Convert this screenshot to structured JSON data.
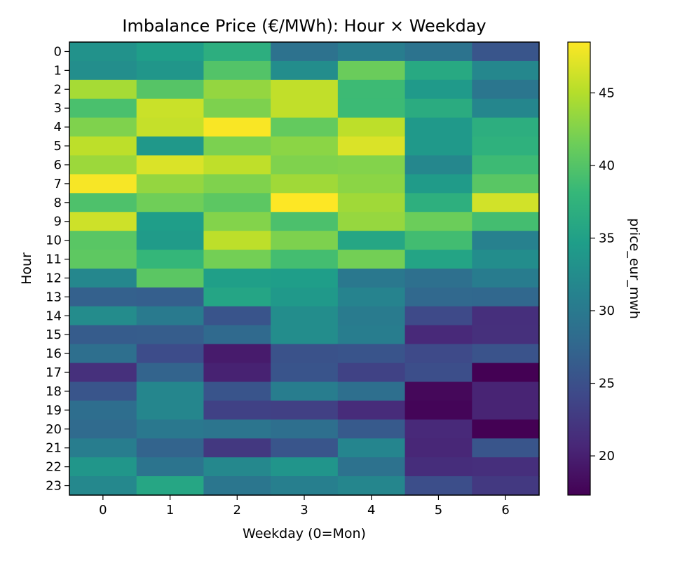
{
  "chart_data": {
    "type": "heatmap",
    "title": "Imbalance Price (€/MWh): Hour × Weekday",
    "xlabel": "Weekday (0=Mon)",
    "ylabel": "Hour",
    "x_categories": [
      "0",
      "1",
      "2",
      "3",
      "4",
      "5",
      "6"
    ],
    "y_categories": [
      "0",
      "1",
      "2",
      "3",
      "4",
      "5",
      "6",
      "7",
      "8",
      "9",
      "10",
      "11",
      "12",
      "13",
      "14",
      "15",
      "16",
      "17",
      "18",
      "19",
      "20",
      "21",
      "22",
      "23"
    ],
    "values": [
      [
        33.1,
        34.6,
        36.9,
        29.0,
        30.5,
        29.2,
        25.6
      ],
      [
        32.7,
        33.7,
        39.9,
        32.5,
        41.3,
        36.1,
        31.8
      ],
      [
        44.3,
        40.1,
        43.4,
        45.6,
        38.6,
        34.1,
        29.5
      ],
      [
        39.4,
        46.0,
        42.3,
        45.6,
        38.5,
        36.5,
        31.6
      ],
      [
        42.4,
        45.8,
        48.3,
        40.9,
        45.4,
        34.0,
        36.8
      ],
      [
        45.4,
        33.9,
        42.2,
        43.0,
        46.8,
        34.0,
        37.2
      ],
      [
        43.8,
        46.8,
        45.5,
        42.4,
        42.6,
        31.8,
        38.6
      ],
      [
        48.2,
        43.4,
        42.4,
        44.0,
        43.0,
        34.3,
        40.3
      ],
      [
        39.6,
        41.6,
        40.5,
        48.5,
        44.0,
        37.0,
        46.4
      ],
      [
        46.2,
        34.6,
        42.6,
        39.5,
        43.5,
        41.4,
        39.0
      ],
      [
        40.3,
        34.3,
        45.4,
        42.3,
        35.8,
        38.9,
        31.0
      ],
      [
        40.6,
        38.0,
        41.8,
        39.0,
        41.8,
        35.4,
        32.5
      ],
      [
        31.8,
        40.4,
        34.8,
        34.6,
        29.9,
        28.8,
        30.4
      ],
      [
        26.9,
        26.7,
        35.6,
        34.0,
        31.3,
        27.8,
        27.7
      ],
      [
        32.4,
        30.1,
        25.5,
        32.5,
        30.2,
        24.3,
        21.5
      ],
      [
        26.4,
        26.5,
        27.9,
        32.5,
        30.5,
        20.9,
        21.6
      ],
      [
        28.6,
        24.6,
        19.6,
        25.2,
        25.5,
        24.3,
        25.3
      ],
      [
        21.6,
        27.2,
        20.2,
        25.5,
        23.5,
        24.8,
        17.3
      ],
      [
        25.6,
        31.6,
        25.5,
        30.5,
        28.6,
        17.9,
        20.4
      ],
      [
        28.5,
        31.7,
        23.4,
        23.3,
        21.2,
        17.7,
        20.4
      ],
      [
        28.1,
        29.8,
        29.4,
        28.6,
        26.1,
        20.9,
        17.3
      ],
      [
        30.5,
        27.2,
        22.4,
        25.6,
        31.5,
        20.7,
        25.6
      ],
      [
        33.6,
        29.3,
        31.9,
        33.5,
        29.0,
        21.3,
        21.5
      ],
      [
        31.9,
        35.8,
        29.5,
        30.8,
        31.7,
        24.8,
        22.5
      ]
    ],
    "colorbar": {
      "label": "price_eur_mwh",
      "min": 17.3,
      "max": 48.5,
      "ticks": [
        "20",
        "25",
        "30",
        "35",
        "40",
        "45"
      ],
      "tick_values": [
        20,
        25,
        30,
        35,
        40,
        45
      ]
    },
    "colormap": "viridis",
    "grid": false
  }
}
